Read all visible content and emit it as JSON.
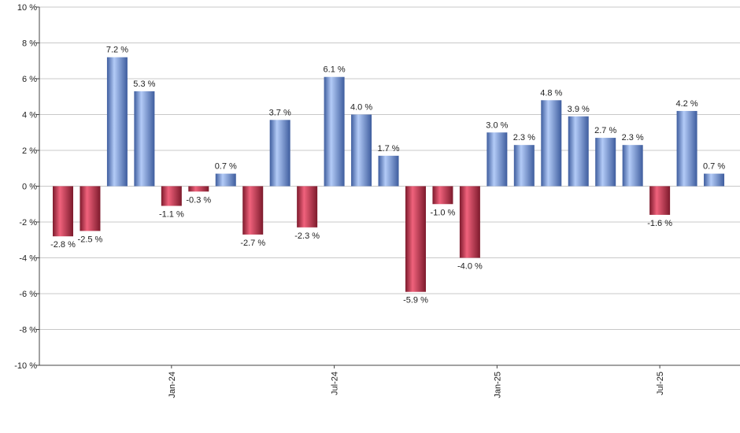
{
  "chart_data": {
    "type": "bar",
    "categories": [
      null,
      null,
      null,
      null,
      "Jan-24",
      null,
      null,
      null,
      null,
      null,
      "Jul-24",
      null,
      null,
      null,
      null,
      null,
      "Jan-25",
      null,
      null,
      null,
      null,
      null,
      "Jul-25",
      null,
      null
    ],
    "values": [
      -2.8,
      -2.5,
      7.2,
      5.3,
      -1.1,
      -0.3,
      0.7,
      -2.7,
      3.7,
      -2.3,
      6.1,
      4.0,
      1.7,
      -5.9,
      -1.0,
      -4.0,
      3.0,
      2.3,
      4.8,
      3.9,
      2.7,
      2.3,
      -1.6,
      4.2,
      0.7
    ],
    "value_labels": [
      "-2.8 %",
      "-2.5 %",
      "7.2 %",
      "5.3 %",
      "-1.1 %",
      "-0.3 %",
      "0.7 %",
      "-2.7 %",
      "3.7 %",
      "-2.3 %",
      "6.1 %",
      "4.0 %",
      "1.7 %",
      "-5.9 %",
      "-1.0 %",
      "-4.0 %",
      "3.0 %",
      "2.3 %",
      "4.8 %",
      "3.9 %",
      "2.7 %",
      "2.3 %",
      "-1.6 %",
      "4.2 %",
      "0.7 %"
    ],
    "positive_colors": [
      "#b3cbf7",
      "#3e5d9e"
    ],
    "negative_colors": [
      "#f0627c",
      "#7d1a2c"
    ],
    "ylim": [
      -10,
      10
    ],
    "yticks": [
      {
        "value": -10,
        "label": "-10 %"
      },
      {
        "value": -8,
        "label": "-8 %"
      },
      {
        "value": -6,
        "label": "-6 %"
      },
      {
        "value": -4,
        "label": "-4 %"
      },
      {
        "value": -2,
        "label": "-2 %"
      },
      {
        "value": 0,
        "label": "0 %"
      },
      {
        "value": 2,
        "label": "2 %"
      },
      {
        "value": 4,
        "label": "4 %"
      },
      {
        "value": 6,
        "label": "6 %"
      },
      {
        "value": 8,
        "label": "8 %"
      },
      {
        "value": 10,
        "label": "10 %"
      }
    ],
    "grid": true
  }
}
